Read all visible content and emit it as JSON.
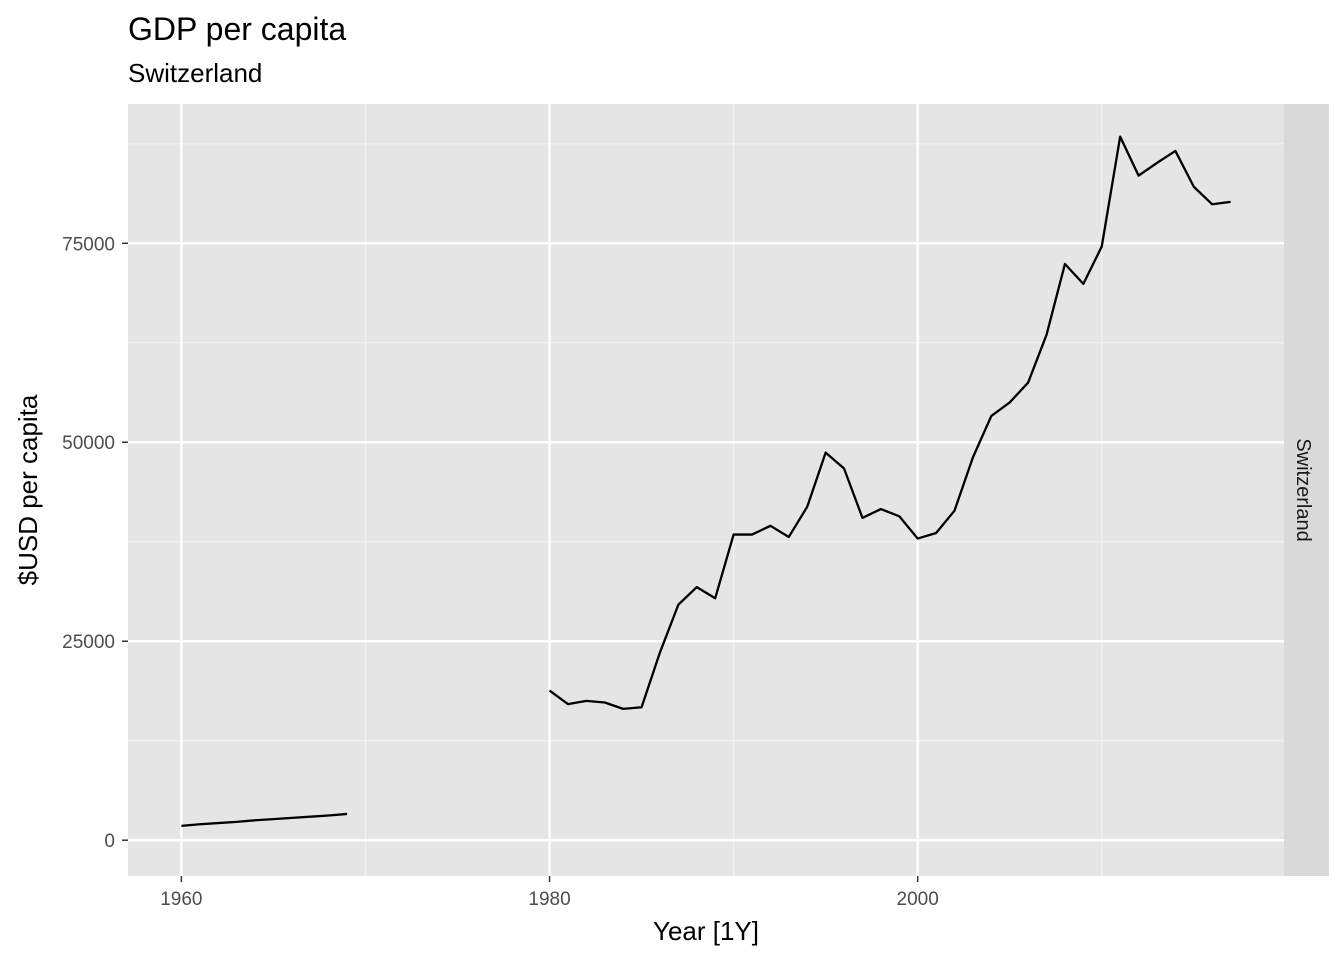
{
  "chart_data": {
    "type": "line",
    "title": "GDP per capita",
    "subtitle": "Switzerland",
    "xlabel": "Year [1Y]",
    "ylabel": "$USD per capita",
    "facet_label": "Switzerland",
    "xlim": [
      1957.1,
      2019.9
    ],
    "ylim": [
      -4500,
      92500
    ],
    "x_ticks": [
      1960,
      1980,
      2000
    ],
    "x_tick_labels": [
      "1960",
      "1980",
      "2000"
    ],
    "x_minor_ticks": [
      1970,
      1990,
      2010
    ],
    "y_ticks": [
      0,
      25000,
      50000,
      75000
    ],
    "y_tick_labels": [
      "0",
      "25000",
      "50000",
      "75000"
    ],
    "y_minor_ticks": [
      12500,
      37500,
      62500,
      87500
    ],
    "grid": true,
    "line_color": "#000000",
    "panel_background": "#e5e5e5",
    "strip_background": "#d9d9d9",
    "series": [
      {
        "segments": [
          {
            "x": [
              1960,
              1961,
              1962,
              1963,
              1964,
              1965,
              1966,
              1967,
              1968,
              1969
            ],
            "y": [
              1800,
              2000,
              2150,
              2300,
              2500,
              2650,
              2800,
              2950,
              3100,
              3300
            ]
          },
          {
            "x": [
              1980,
              1981,
              1982,
              1983,
              1984,
              1985,
              1986,
              1987,
              1988,
              1989,
              1990,
              1991,
              1992,
              1993,
              1994,
              1995,
              1996,
              1997,
              1998,
              1999,
              2000,
              2001,
              2002,
              2003,
              2004,
              2005,
              2006,
              2007,
              2008,
              2009,
              2010,
              2011,
              2012,
              2013,
              2014,
              2015,
              2016,
              2017
            ],
            "y": [
              18800,
              17100,
              17500,
              17300,
              16500,
              16700,
              23600,
              29600,
              31800,
              30400,
              38400,
              38400,
              39500,
              38100,
              41900,
              48700,
              46700,
              40500,
              41600,
              40700,
              37900,
              38600,
              41400,
              48100,
              53300,
              55000,
              57500,
              63500,
              72400,
              69900,
              74600,
              88400,
              83500,
              85100,
              86600,
              82100,
              79900,
              80200
            ]
          }
        ]
      }
    ]
  }
}
